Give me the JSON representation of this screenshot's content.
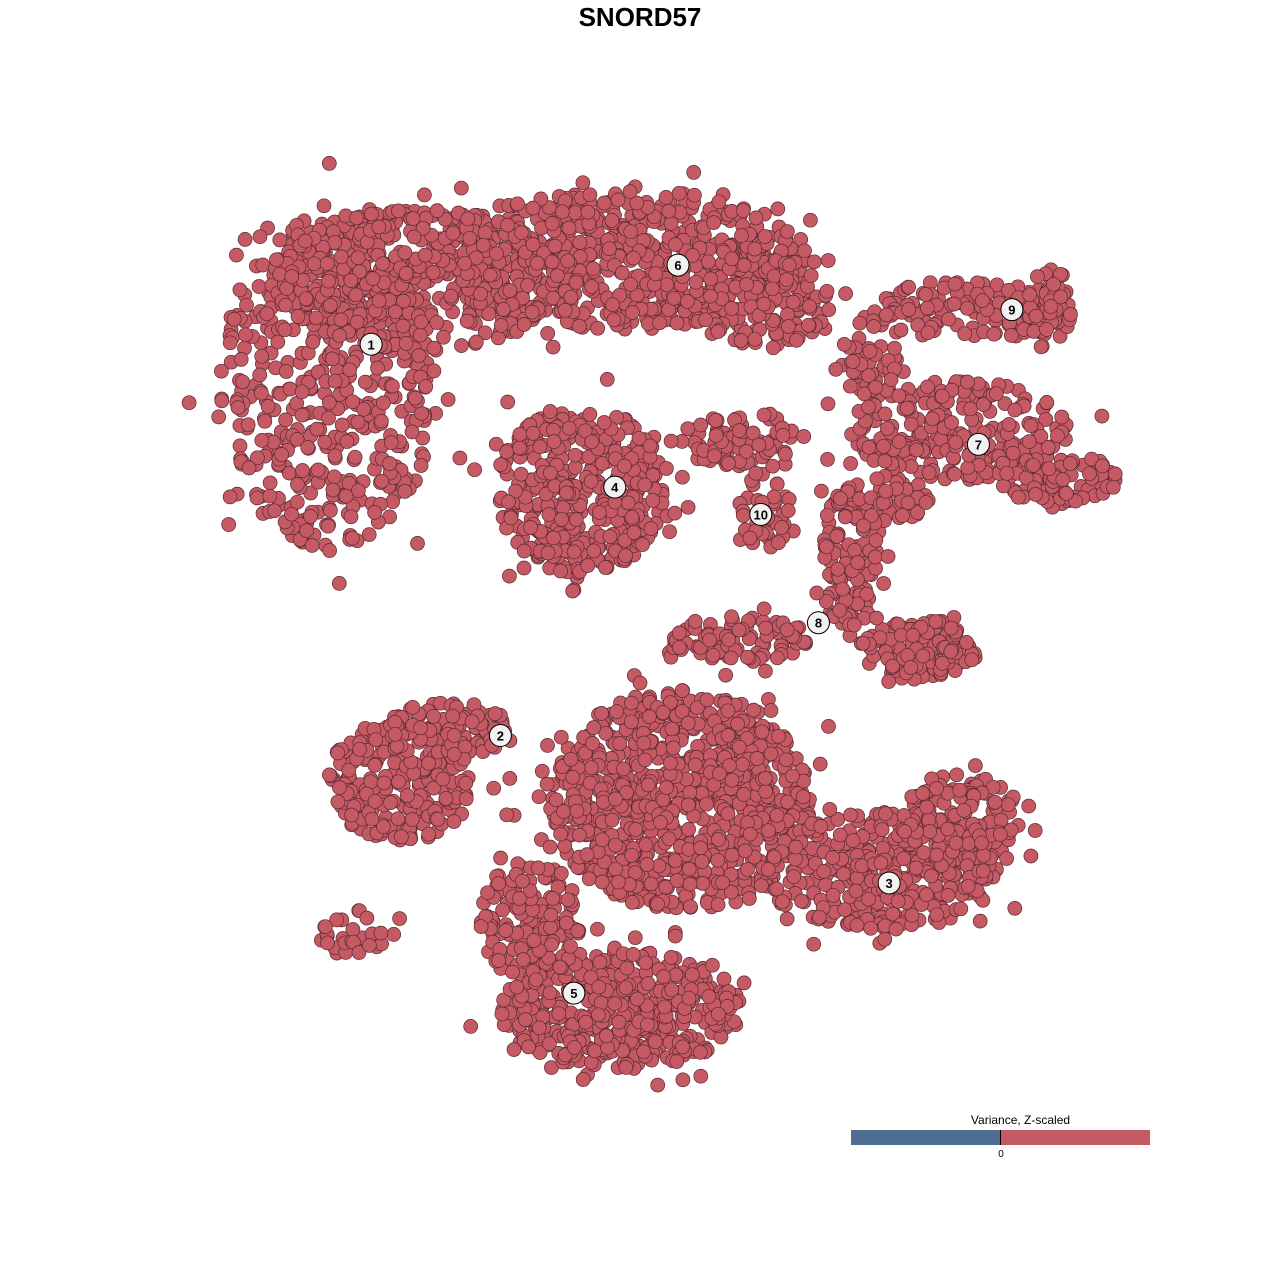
{
  "chart_data": {
    "type": "scatter",
    "title": "SNORD57",
    "xlabel": "",
    "ylabel": "",
    "axes_visible": false,
    "grid": false,
    "xlim": [
      0,
      100
    ],
    "ylim": [
      0,
      100
    ],
    "point_color": "#c55a65",
    "point_edge_color": "#5a2a30",
    "note_points": "approximate point clouds per region (embedding coordinates)",
    "point_clouds": [
      {
        "cluster": "1",
        "cx": 14,
        "cy": 21.5,
        "rx": 11.8,
        "ry": 18.7,
        "n": 520
      },
      {
        "cluster": "1",
        "cx": 23.7,
        "cy": 10.4,
        "rx": 16,
        "ry": 7.7,
        "n": 420
      },
      {
        "cluster": "6",
        "cx": 45.2,
        "cy": 8.2,
        "rx": 20.4,
        "ry": 7.7,
        "n": 620
      },
      {
        "cluster": "6",
        "cx": 60.2,
        "cy": 12.6,
        "rx": 7.5,
        "ry": 5.5,
        "n": 150
      },
      {
        "cluster": "4",
        "cx": 40.9,
        "cy": 33.5,
        "rx": 9.1,
        "ry": 9.3,
        "n": 420
      },
      {
        "cluster": "10",
        "cx": 58,
        "cy": 28,
        "rx": 6.5,
        "ry": 3.3,
        "n": 80
      },
      {
        "cluster": "10",
        "cx": 60.8,
        "cy": 35.7,
        "rx": 2.7,
        "ry": 4.4,
        "n": 40
      },
      {
        "cluster": "7",
        "cx": 81.7,
        "cy": 27,
        "rx": 11.8,
        "ry": 5.5,
        "n": 250
      },
      {
        "cluster": "7",
        "cx": 92.5,
        "cy": 32.4,
        "rx": 6.5,
        "ry": 2.7,
        "n": 80
      },
      {
        "cluster": "7",
        "cx": 72,
        "cy": 19.2,
        "rx": 3.2,
        "ry": 4.4,
        "n": 50
      },
      {
        "cluster": "9",
        "cx": 82.8,
        "cy": 13.7,
        "rx": 10.8,
        "ry": 3.3,
        "n": 130
      },
      {
        "cluster": "9",
        "cx": 91.4,
        "cy": 13.7,
        "rx": 2.2,
        "ry": 4.9,
        "n": 50
      },
      {
        "cluster": "8",
        "cx": 69.9,
        "cy": 41.2,
        "rx": 3.2,
        "ry": 7.7,
        "n": 120
      },
      {
        "cluster": "8",
        "cx": 77.4,
        "cy": 51.1,
        "rx": 6.5,
        "ry": 3.3,
        "n": 120
      },
      {
        "cluster": "8",
        "cx": 58,
        "cy": 50,
        "rx": 7.5,
        "ry": 2.7,
        "n": 90
      },
      {
        "cluster": "8",
        "cx": 73,
        "cy": 34.6,
        "rx": 5.4,
        "ry": 2.7,
        "n": 70
      },
      {
        "cluster": "2",
        "cx": 21.5,
        "cy": 65.4,
        "rx": 8.1,
        "ry": 6.6,
        "n": 220
      },
      {
        "cluster": "2",
        "cx": 26.9,
        "cy": 59.9,
        "rx": 6.5,
        "ry": 3.3,
        "n": 100
      },
      {
        "cluster": "2",
        "cx": 16.1,
        "cy": 81.9,
        "rx": 4.3,
        "ry": 2.7,
        "n": 30
      },
      {
        "cluster": "3",
        "cx": 51.6,
        "cy": 67.6,
        "rx": 14,
        "ry": 12.1,
        "n": 900
      },
      {
        "cluster": "3",
        "cx": 73.1,
        "cy": 75.3,
        "rx": 12.9,
        "ry": 6.6,
        "n": 350
      },
      {
        "cluster": "3",
        "cx": 81.7,
        "cy": 69.8,
        "rx": 6.5,
        "ry": 5.5,
        "n": 150
      },
      {
        "cluster": "5",
        "cx": 45.2,
        "cy": 90.7,
        "rx": 12.9,
        "ry": 6.6,
        "n": 450
      },
      {
        "cluster": "5",
        "cx": 35.5,
        "cy": 80.8,
        "rx": 5.4,
        "ry": 6.6,
        "n": 150
      }
    ],
    "cluster_labels": [
      {
        "label": "1",
        "x": 18.4,
        "y": 17.5
      },
      {
        "label": "2",
        "x": 32.3,
        "y": 60.5
      },
      {
        "label": "3",
        "x": 74.1,
        "y": 76.7
      },
      {
        "label": "4",
        "x": 44.6,
        "y": 33.2
      },
      {
        "label": "5",
        "x": 40.2,
        "y": 88.8
      },
      {
        "label": "6",
        "x": 51.4,
        "y": 8.8
      },
      {
        "label": "7",
        "x": 83.7,
        "y": 28.5
      },
      {
        "label": "8",
        "x": 66.5,
        "y": 48.1
      },
      {
        "label": "9",
        "x": 87.3,
        "y": 13.7
      },
      {
        "label": "10",
        "x": 60.3,
        "y": 36.2
      }
    ],
    "legend": {
      "title": "Variance, Z-scaled",
      "placement": "bottom-right",
      "tick_label": "0",
      "low_color": "#4f6d8f",
      "high_color": "#c55a65"
    }
  }
}
